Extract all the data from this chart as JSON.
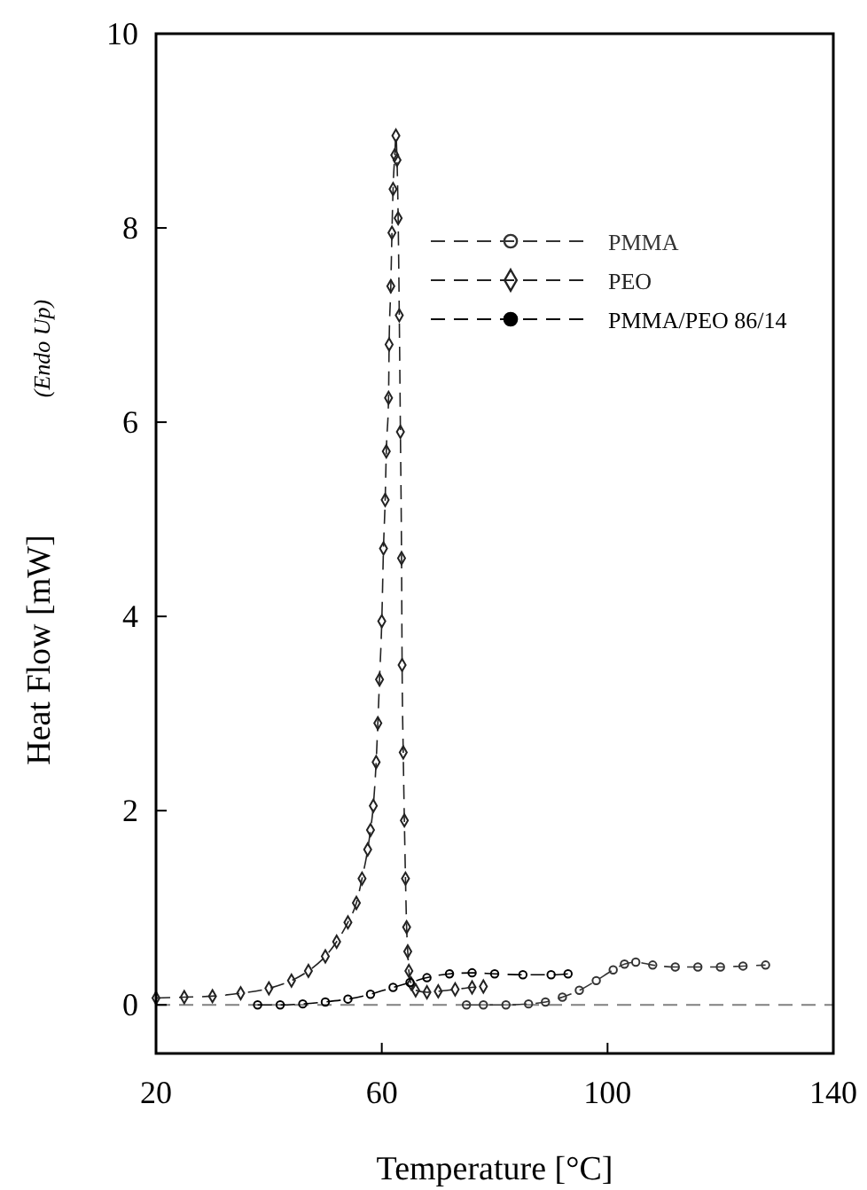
{
  "chart_data": {
    "type": "line",
    "xlabel": "Temperature [°C]",
    "ylabel": "Heat Flow  [mW]",
    "annotations": [
      "(Endo Up)"
    ],
    "xlim": [
      20,
      140
    ],
    "xticks": [
      20,
      60,
      100,
      140
    ],
    "ylim": [
      -0.5,
      10
    ],
    "yticks": [
      0,
      2,
      4,
      6,
      8,
      10
    ],
    "grid": false,
    "legend": "top right",
    "line_style": "dashed",
    "ref_lines": [
      {
        "axis": "y",
        "value": 0,
        "color": "#808080",
        "line_style": "dashed"
      }
    ],
    "series": [
      {
        "name": "PMMA",
        "color": "#333333",
        "marker": "circle",
        "x": [
          75,
          78,
          82,
          86,
          89,
          92,
          95,
          98,
          101,
          103,
          105,
          108,
          112,
          116,
          120,
          124,
          128
        ],
        "values": [
          0,
          0,
          0,
          0.01,
          0.03,
          0.08,
          0.15,
          0.25,
          0.36,
          0.42,
          0.44,
          0.41,
          0.39,
          0.39,
          0.39,
          0.4,
          0.41
        ]
      },
      {
        "name": "PEO",
        "color": "#222222",
        "marker": "diamond",
        "x": [
          20,
          25,
          30,
          35,
          40,
          44,
          47,
          50,
          52,
          54,
          55.5,
          56.5,
          57.5,
          58,
          58.5,
          59,
          59.3,
          59.6,
          60,
          60.3,
          60.6,
          60.8,
          61.2,
          61.3,
          61.6,
          61.8,
          62,
          62.3,
          62.5,
          62.7,
          62.9,
          63.1,
          63.3,
          63.5,
          63.6,
          63.8,
          64,
          64.2,
          64.4,
          64.6,
          64.8,
          65.2,
          66,
          68,
          70,
          73,
          76,
          78
        ],
        "values": [
          0.07,
          0.08,
          0.09,
          0.12,
          0.17,
          0.25,
          0.35,
          0.5,
          0.65,
          0.85,
          1.05,
          1.3,
          1.6,
          1.8,
          2.05,
          2.5,
          2.9,
          3.35,
          3.95,
          4.7,
          5.2,
          5.7,
          6.25,
          6.8,
          7.4,
          7.95,
          8.4,
          8.75,
          8.95,
          8.7,
          8.1,
          7.1,
          5.9,
          4.6,
          3.5,
          2.6,
          1.9,
          1.3,
          0.8,
          0.55,
          0.35,
          0.22,
          0.15,
          0.13,
          0.14,
          0.16,
          0.18,
          0.19
        ]
      },
      {
        "name": "PMMA/PEO 86/14",
        "color": "#000000",
        "marker": "circle",
        "x": [
          38,
          42,
          46,
          50,
          54,
          58,
          62,
          65,
          68,
          72,
          76,
          80,
          85,
          90,
          93
        ],
        "values": [
          0,
          0,
          0.01,
          0.03,
          0.06,
          0.11,
          0.18,
          0.23,
          0.28,
          0.32,
          0.33,
          0.32,
          0.31,
          0.31,
          0.32
        ]
      }
    ]
  }
}
